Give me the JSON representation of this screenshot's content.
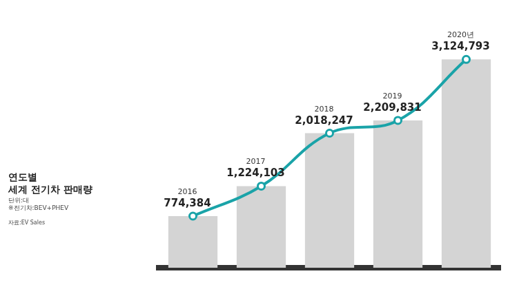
{
  "chart_data": {
    "type": "line",
    "title": "연도별 세계 전기차 판매량",
    "subtitle": [
      "단위:대",
      "※전기차:BEV+PHEV"
    ],
    "source": "자료:EV Sales",
    "categories": [
      "2016",
      "2017",
      "2018",
      "2019",
      "2020년"
    ],
    "series": [
      {
        "type": "bar",
        "color": "#d4d4d4",
        "values": [
          774384,
          1224103,
          2018247,
          2209831,
          3124793
        ]
      },
      {
        "type": "line",
        "color": "#1aa3a8",
        "marker": "circle",
        "values": [
          774384,
          1224103,
          2018247,
          2209831,
          3124793
        ],
        "value_labels": [
          "774,384",
          "1,224,103",
          "2,018,247",
          "2,209,831",
          "3,124,793"
        ]
      }
    ],
    "data_labels": true,
    "ylim": [
      0,
      3500000
    ],
    "grid": false,
    "tick_labels": false
  }
}
